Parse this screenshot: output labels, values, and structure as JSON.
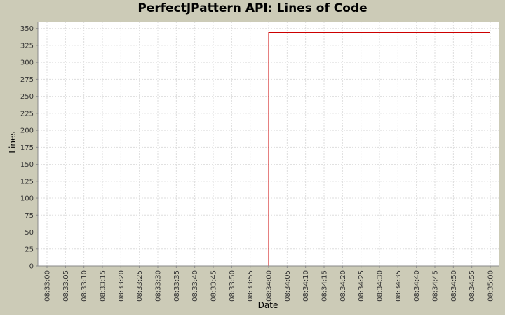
{
  "chart_data": {
    "type": "line",
    "title": "PerfectJPattern API: Lines of Code",
    "xlabel": "Date",
    "ylabel": "Lines",
    "ylim": [
      0,
      360
    ],
    "xlim": [
      "08:33:00",
      "08:35:00"
    ],
    "grid": true,
    "x_ticks": [
      "08:33:00",
      "08:33:05",
      "08:33:10",
      "08:33:15",
      "08:33:20",
      "08:33:25",
      "08:33:30",
      "08:33:35",
      "08:33:40",
      "08:33:45",
      "08:33:50",
      "08:33:55",
      "08:34:00",
      "08:34:05",
      "08:34:10",
      "08:34:15",
      "08:34:20",
      "08:34:25",
      "08:34:30",
      "08:34:35",
      "08:34:40",
      "08:34:45",
      "08:34:50",
      "08:34:55",
      "08:35:00"
    ],
    "y_ticks": [
      0,
      25,
      50,
      75,
      100,
      125,
      150,
      175,
      200,
      225,
      250,
      275,
      300,
      325,
      350
    ],
    "series": [
      {
        "color": "#cc0000",
        "x": [
          "08:33:00",
          "08:34:00",
          "08:34:00",
          "08:35:00"
        ],
        "y": [
          0,
          0,
          344,
          344
        ]
      }
    ]
  }
}
